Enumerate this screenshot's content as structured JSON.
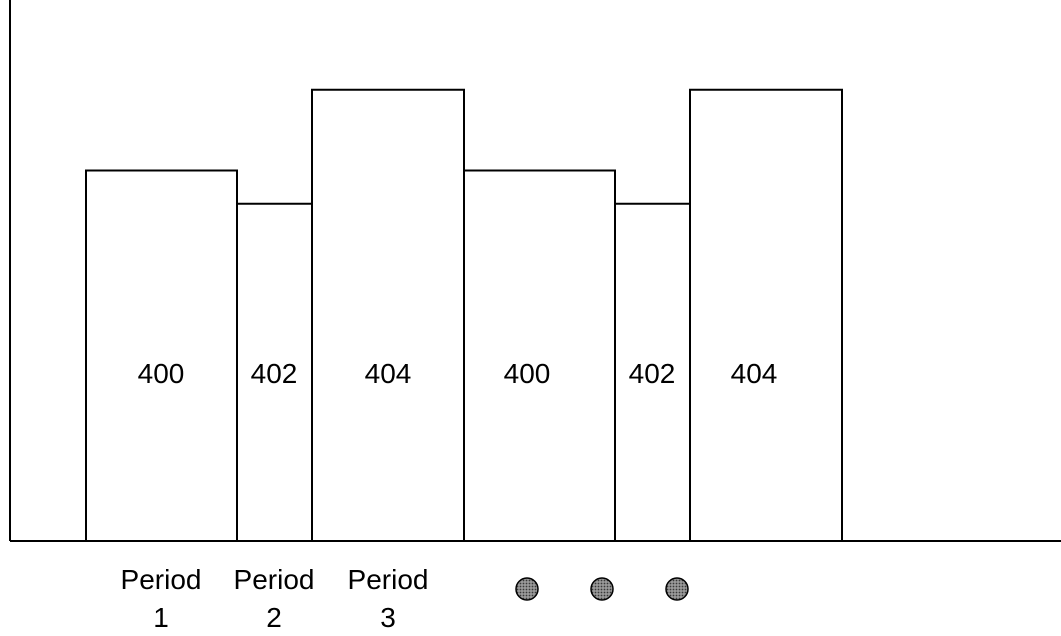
{
  "diagram": {
    "bars": [
      {
        "label": "400",
        "relative_height": 0.78
      },
      {
        "label": "402",
        "relative_height": 0.71
      },
      {
        "label": "404",
        "relative_height": 0.95
      },
      {
        "label": "400",
        "relative_height": 0.78
      },
      {
        "label": "402",
        "relative_height": 0.71
      },
      {
        "label": "404",
        "relative_height": 0.95
      }
    ],
    "period_labels": [
      {
        "word": "Period",
        "number": "1"
      },
      {
        "word": "Period",
        "number": "2"
      },
      {
        "word": "Period",
        "number": "3"
      }
    ],
    "continuation_marker": {
      "count": 3,
      "fill_color": "#6e6e6e",
      "stroke_color": "#000000"
    }
  }
}
